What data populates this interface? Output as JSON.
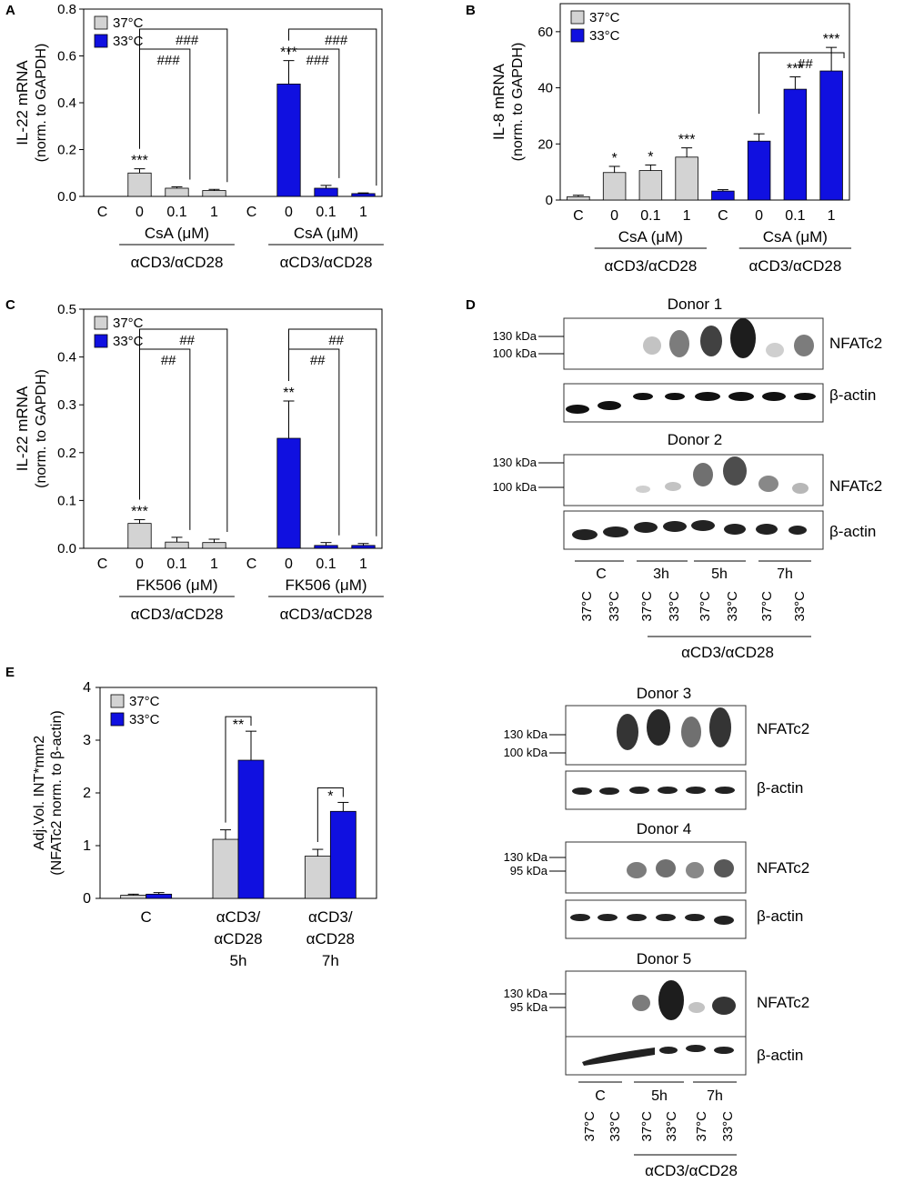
{
  "legend": {
    "series1": "37°C",
    "series2": "33°C",
    "color1": "#d3d3d3",
    "color2": "#1010e0"
  },
  "chart_data": [
    {
      "panel": "A",
      "type": "bar",
      "ylabel": [
        "IL-22 mRNA",
        "(norm. to GAPDH)"
      ],
      "ylim": [
        0,
        0.8
      ],
      "yticks": [
        "0.0",
        "0.2",
        "0.4",
        "0.6",
        "0.8"
      ],
      "categories": [
        "C",
        "0",
        "0.1",
        "1",
        "C",
        "0",
        "0.1",
        "1"
      ],
      "groups": [
        {
          "label": "CsA (μM)",
          "under": "αCD3/αCD28",
          "cols": [
            1,
            3
          ]
        },
        {
          "label": "CsA (μM)",
          "under": "αCD3/αCD28",
          "cols": [
            5,
            7
          ]
        }
      ],
      "values": [
        0,
        0.1,
        0.035,
        0.025,
        0,
        0.48,
        0.035,
        0.012
      ],
      "errors": [
        0,
        0.018,
        0.006,
        0.005,
        0,
        0.1,
        0.012,
        0.003
      ],
      "series_index": [
        0,
        0,
        0,
        0,
        1,
        1,
        1,
        1
      ],
      "stars": [
        {
          "col": 1,
          "text": "***"
        },
        {
          "col": 5,
          "text": "***"
        }
      ],
      "brackets": [
        {
          "from": 1,
          "to": 2,
          "text": "###",
          "level": 1
        },
        {
          "from": 1,
          "to": 3,
          "text": "###",
          "level": 2
        },
        {
          "from": 5,
          "to": 6,
          "text": "###",
          "level": 1
        },
        {
          "from": 5,
          "to": 7,
          "text": "###",
          "level": 2
        }
      ]
    },
    {
      "panel": "B",
      "type": "bar",
      "ylabel": [
        "IL-8 mRNA",
        "(norm. to GAPDH)"
      ],
      "ylim": [
        0,
        70
      ],
      "yticks": [
        "0",
        "20",
        "40",
        "60"
      ],
      "categories": [
        "C",
        "0",
        "0.1",
        "1",
        "C",
        "0",
        "0.1",
        "1"
      ],
      "groups": [
        {
          "label": "CsA (μM)",
          "under": "αCD3/αCD28",
          "cols": [
            1,
            3
          ]
        },
        {
          "label": "CsA (μM)",
          "under": "αCD3/αCD28",
          "cols": [
            5,
            7
          ]
        }
      ],
      "values": [
        1.2,
        9.8,
        10.5,
        15.3,
        3.2,
        21.0,
        39.5,
        46.0
      ],
      "errors": [
        0.5,
        2.2,
        2.0,
        3.3,
        0.5,
        2.6,
        4.4,
        8.4
      ],
      "series_index": [
        0,
        0,
        0,
        0,
        1,
        1,
        1,
        1
      ],
      "stars": [
        {
          "col": 1,
          "text": "*"
        },
        {
          "col": 2,
          "text": "*"
        },
        {
          "col": 3,
          "text": "***"
        },
        {
          "col": 6,
          "text": "***"
        },
        {
          "col": 7,
          "text": "***"
        }
      ],
      "brackets": [
        {
          "from": 5,
          "to": 7,
          "text": "##",
          "level": 1
        }
      ]
    },
    {
      "panel": "C",
      "type": "bar",
      "ylabel": [
        "IL-22 mRNA",
        "(norm. to GAPDH)"
      ],
      "ylim": [
        0,
        0.5
      ],
      "yticks": [
        "0.0",
        "0.1",
        "0.2",
        "0.3",
        "0.4",
        "0.5"
      ],
      "categories": [
        "C",
        "0",
        "0.1",
        "1",
        "C",
        "0",
        "0.1",
        "1"
      ],
      "groups": [
        {
          "label": "FK506 (μM)",
          "under": "αCD3/αCD28",
          "cols": [
            1,
            3
          ]
        },
        {
          "label": "FK506 (μM)",
          "under": "αCD3/αCD28",
          "cols": [
            5,
            7
          ]
        }
      ],
      "values": [
        0,
        0.052,
        0.013,
        0.012,
        0,
        0.23,
        0.006,
        0.006
      ],
      "errors": [
        0,
        0.008,
        0.01,
        0.007,
        0,
        0.078,
        0.006,
        0.004
      ],
      "series_index": [
        0,
        0,
        0,
        0,
        1,
        1,
        1,
        1
      ],
      "stars": [
        {
          "col": 1,
          "text": "***"
        },
        {
          "col": 5,
          "text": "**"
        }
      ],
      "brackets": [
        {
          "from": 1,
          "to": 2,
          "text": "##",
          "level": 1
        },
        {
          "from": 1,
          "to": 3,
          "text": "##",
          "level": 2
        },
        {
          "from": 5,
          "to": 6,
          "text": "##",
          "level": 1
        },
        {
          "from": 5,
          "to": 7,
          "text": "##",
          "level": 2
        }
      ]
    },
    {
      "panel": "E",
      "type": "bar",
      "ylabel": [
        "Adj.Vol. INT*mm2",
        "(NFATc2 norm. to β-actin)"
      ],
      "ylim": [
        0,
        4
      ],
      "yticks": [
        "0",
        "1",
        "2",
        "3",
        "4"
      ],
      "categories": [
        [
          "C"
        ],
        [
          "αCD3/",
          "αCD28",
          "5h"
        ],
        [
          "αCD3/",
          "αCD28",
          "7h"
        ]
      ],
      "series": [
        {
          "name": "37°C",
          "values": [
            0.06,
            1.12,
            0.8
          ],
          "errors": [
            0.02,
            0.18,
            0.13
          ]
        },
        {
          "name": "33°C",
          "values": [
            0.08,
            2.62,
            1.65
          ],
          "errors": [
            0.03,
            0.55,
            0.17
          ]
        }
      ],
      "stars": [
        {
          "group": 1,
          "text": "**"
        },
        {
          "group": 2,
          "text": "*"
        }
      ]
    }
  ],
  "blots": {
    "panel_label": "D",
    "kda_130": "130 kDa",
    "kda_100": "100 kDa",
    "kda_95": "95 kDa",
    "nfat": "NFATc2",
    "actin": "β-actin",
    "donor1": "Donor 1",
    "donor2": "Donor 2",
    "donor3": "Donor 3",
    "donor4": "Donor 4",
    "donor5": "Donor 5",
    "times_top": [
      "C",
      "3h",
      "5h",
      "7h"
    ],
    "times_bottom": [
      "C",
      "5h",
      "7h"
    ],
    "lanes_top": [
      "37°C",
      "33°C",
      "37°C",
      "33°C",
      "37°C",
      "33°C",
      "37°C",
      "33°C"
    ],
    "lanes_bottom": [
      "37°C",
      "33°C",
      "37°C",
      "33°C",
      "37°C",
      "33°C"
    ],
    "stim": "αCD3/αCD28"
  }
}
